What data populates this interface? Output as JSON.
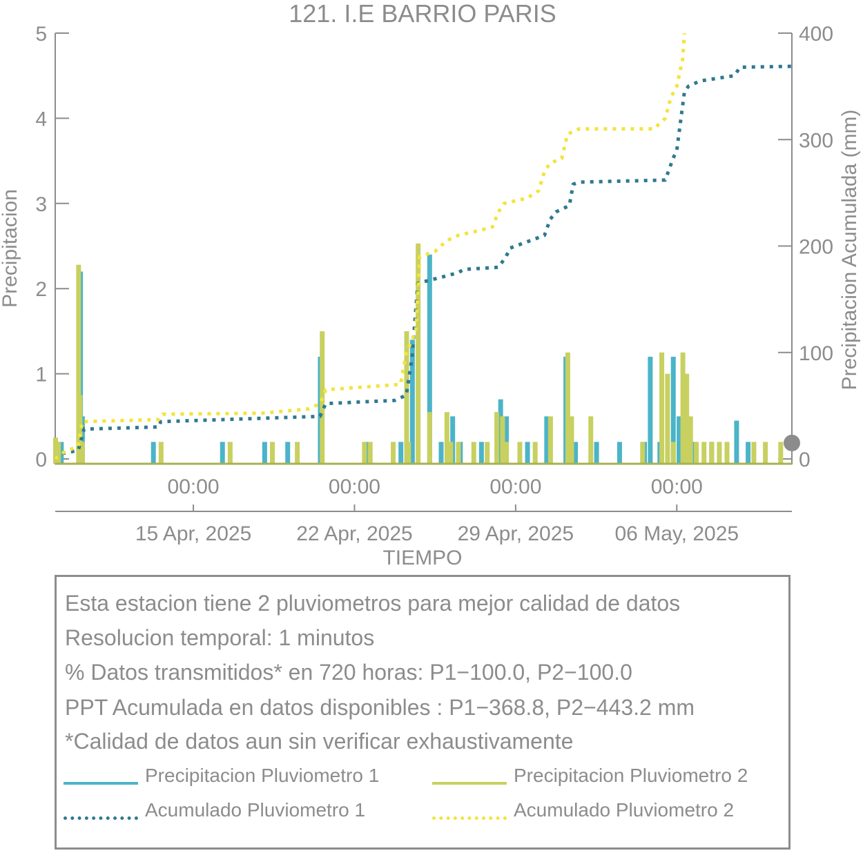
{
  "chart_data": {
    "type": "bar+line",
    "title": "121. I.E BARRIO PARIS",
    "xlabel": "TIEMPO",
    "ylabel": "Precipitacion",
    "y2label": "Precipitacion Acumulada (mm)",
    "x_range": [
      "2025-04-09T00:00",
      "2025-05-11T00:00"
    ],
    "ylim": [
      0,
      5
    ],
    "y2lim": [
      0,
      400
    ],
    "yticks": [
      0,
      1,
      2,
      3,
      4,
      5
    ],
    "y2ticks": [
      0,
      100,
      200,
      300,
      400
    ],
    "xticks": [
      {
        "date": "2025-04-15T00:00",
        "time": "00:00",
        "day": "15 Apr, 2025"
      },
      {
        "date": "2025-04-22T00:00",
        "time": "00:00",
        "day": "22 Apr, 2025"
      },
      {
        "date": "2025-04-29T00:00",
        "time": "00:00",
        "day": "29 Apr, 2025"
      },
      {
        "date": "2025-05-06T00:00",
        "time": "00:00",
        "day": "06 May, 2025"
      }
    ],
    "marker": {
      "date": "2025-05-11T00:00",
      "y2": 15
    },
    "series": [
      {
        "name": "Precipitacion Pluviometro 1",
        "kind": "bars",
        "axis": "left",
        "color": "#4bb4c8",
        "points": [
          [
            "2025-04-09T00:30",
            0.2
          ],
          [
            "2025-04-09T06:00",
            0.2
          ],
          [
            "2025-04-10T02:00",
            2.2
          ],
          [
            "2025-04-10T04:00",
            0.5
          ],
          [
            "2025-04-13T06:00",
            0.2
          ],
          [
            "2025-04-16T06:00",
            0.2
          ],
          [
            "2025-04-18T02:00",
            0.2
          ],
          [
            "2025-04-19T02:00",
            0.2
          ],
          [
            "2025-04-20T12:00",
            1.2
          ],
          [
            "2025-04-22T12:00",
            0.2
          ],
          [
            "2025-04-24T00:00",
            0.2
          ],
          [
            "2025-04-24T12:00",
            1.4
          ],
          [
            "2025-04-25T06:00",
            2.4
          ],
          [
            "2025-04-25T18:00",
            0.2
          ],
          [
            "2025-04-26T06:00",
            0.5
          ],
          [
            "2025-04-26T14:00",
            0.2
          ],
          [
            "2025-04-27T12:00",
            0.2
          ],
          [
            "2025-04-28T08:00",
            0.7
          ],
          [
            "2025-04-28T14:00",
            0.5
          ],
          [
            "2025-04-29T12:00",
            0.2
          ],
          [
            "2025-04-30T08:00",
            0.5
          ],
          [
            "2025-05-01T04:00",
            1.2
          ],
          [
            "2025-05-01T14:00",
            0.2
          ],
          [
            "2025-05-02T12:00",
            0.2
          ],
          [
            "2025-05-03T12:00",
            0.2
          ],
          [
            "2025-05-04T14:00",
            0.2
          ],
          [
            "2025-05-04T20:00",
            1.2
          ],
          [
            "2025-05-05T06:00",
            0.2
          ],
          [
            "2025-05-05T20:00",
            1.2
          ],
          [
            "2025-05-06T02:00",
            0.5
          ],
          [
            "2025-05-06T18:00",
            0.2
          ],
          [
            "2025-05-07T12:00",
            0.2
          ],
          [
            "2025-05-08T14:00",
            0.45
          ],
          [
            "2025-05-09T02:00",
            0.2
          ]
        ]
      },
      {
        "name": "Precipitacion Pluviometro 2",
        "kind": "bars",
        "axis": "left",
        "color": "#c8d060",
        "points": [
          [
            "2025-04-09T00:00",
            0.25
          ],
          [
            "2025-04-09T03:00",
            0.2
          ],
          [
            "2025-04-10T00:00",
            2.28
          ],
          [
            "2025-04-10T01:30",
            0.75
          ],
          [
            "2025-04-10T04:00",
            0.2
          ],
          [
            "2025-04-13T14:00",
            0.2
          ],
          [
            "2025-04-16T14:00",
            0.2
          ],
          [
            "2025-04-18T10:00",
            0.2
          ],
          [
            "2025-04-19T12:00",
            0.2
          ],
          [
            "2025-04-20T14:00",
            1.5
          ],
          [
            "2025-04-22T10:00",
            0.2
          ],
          [
            "2025-04-22T16:00",
            0.2
          ],
          [
            "2025-04-23T16:00",
            0.2
          ],
          [
            "2025-04-24T06:00",
            1.5
          ],
          [
            "2025-04-24T08:00",
            0.2
          ],
          [
            "2025-04-24T18:00",
            2.53
          ],
          [
            "2025-04-25T06:00",
            0.55
          ],
          [
            "2025-04-26T00:00",
            0.55
          ],
          [
            "2025-04-26T04:00",
            0.2
          ],
          [
            "2025-04-26T12:00",
            0.2
          ],
          [
            "2025-04-27T04:00",
            0.2
          ],
          [
            "2025-04-27T18:00",
            0.2
          ],
          [
            "2025-04-28T04:00",
            0.55
          ],
          [
            "2025-04-28T10:00",
            0.5
          ],
          [
            "2025-04-28T14:00",
            0.2
          ],
          [
            "2025-04-29T04:00",
            0.2
          ],
          [
            "2025-04-29T20:00",
            0.2
          ],
          [
            "2025-04-30T12:00",
            0.5
          ],
          [
            "2025-05-01T06:00",
            1.25
          ],
          [
            "2025-05-01T10:00",
            0.5
          ],
          [
            "2025-05-02T06:00",
            0.5
          ],
          [
            "2025-05-04T12:00",
            0.2
          ],
          [
            "2025-05-05T08:00",
            1.25
          ],
          [
            "2025-05-05T14:00",
            1.0
          ],
          [
            "2025-05-05T20:00",
            0.2
          ],
          [
            "2025-05-06T06:00",
            1.25
          ],
          [
            "2025-05-06T10:00",
            1.0
          ],
          [
            "2025-05-06T14:00",
            0.5
          ],
          [
            "2025-05-06T20:00",
            0.2
          ],
          [
            "2025-05-07T04:00",
            0.2
          ],
          [
            "2025-05-07T12:00",
            0.2
          ],
          [
            "2025-05-07T20:00",
            0.2
          ],
          [
            "2025-05-08T04:00",
            0.2
          ],
          [
            "2025-05-09T08:00",
            0.2
          ],
          [
            "2025-05-09T20:00",
            0.2
          ],
          [
            "2025-05-10T12:00",
            0.2
          ]
        ]
      },
      {
        "name": "Acumulado Pluviometro 1",
        "kind": "dotted-line",
        "axis": "right",
        "color": "#2f7990",
        "points": [
          [
            "2025-04-09T00:00",
            0
          ],
          [
            "2025-04-09T06:00",
            5
          ],
          [
            "2025-04-10T00:00",
            8
          ],
          [
            "2025-04-10T06:00",
            28
          ],
          [
            "2025-04-13T12:00",
            30
          ],
          [
            "2025-04-13T14:00",
            35
          ],
          [
            "2025-04-20T12:00",
            40
          ],
          [
            "2025-04-20T18:00",
            52
          ],
          [
            "2025-04-23T18:00",
            55
          ],
          [
            "2025-04-24T06:00",
            60
          ],
          [
            "2025-04-24T12:00",
            95
          ],
          [
            "2025-04-24T18:00",
            165
          ],
          [
            "2025-04-26T00:00",
            172
          ],
          [
            "2025-04-26T12:00",
            175
          ],
          [
            "2025-04-26T18:00",
            178
          ],
          [
            "2025-04-28T06:00",
            180
          ],
          [
            "2025-04-28T14:00",
            190
          ],
          [
            "2025-04-28T18:00",
            198
          ],
          [
            "2025-04-29T06:00",
            202
          ],
          [
            "2025-04-30T06:00",
            210
          ],
          [
            "2025-04-30T12:00",
            225
          ],
          [
            "2025-04-30T18:00",
            232
          ],
          [
            "2025-05-01T08:00",
            238
          ],
          [
            "2025-05-01T12:00",
            258
          ],
          [
            "2025-05-01T18:00",
            260
          ],
          [
            "2025-05-05T12:00",
            262
          ],
          [
            "2025-05-05T16:00",
            272
          ],
          [
            "2025-05-05T20:00",
            282
          ],
          [
            "2025-05-06T00:00",
            290
          ],
          [
            "2025-05-06T08:00",
            345
          ],
          [
            "2025-05-06T12:00",
            350
          ],
          [
            "2025-05-07T00:00",
            355
          ],
          [
            "2025-05-08T12:00",
            360
          ],
          [
            "2025-05-08T18:00",
            368
          ],
          [
            "2025-05-11T00:00",
            368.8
          ]
        ]
      },
      {
        "name": "Acumulado Pluviometro 2",
        "kind": "dotted-line",
        "axis": "right",
        "color": "#f2e43c",
        "points": [
          [
            "2025-04-09T00:00",
            0
          ],
          [
            "2025-04-09T06:00",
            5
          ],
          [
            "2025-04-10T00:00",
            12
          ],
          [
            "2025-04-10T04:00",
            35
          ],
          [
            "2025-04-13T12:00",
            37
          ],
          [
            "2025-04-13T16:00",
            42
          ],
          [
            "2025-04-18T00:00",
            43
          ],
          [
            "2025-04-20T00:00",
            47
          ],
          [
            "2025-04-20T12:00",
            52
          ],
          [
            "2025-04-20T18:00",
            65
          ],
          [
            "2025-04-24T00:00",
            70
          ],
          [
            "2025-04-24T06:00",
            100
          ],
          [
            "2025-04-24T16:00",
            120
          ],
          [
            "2025-04-24T20:00",
            190
          ],
          [
            "2025-04-25T12:00",
            195
          ],
          [
            "2025-04-26T00:00",
            205
          ],
          [
            "2025-04-26T12:00",
            210
          ],
          [
            "2025-04-27T12:00",
            215
          ],
          [
            "2025-04-28T00:00",
            218
          ],
          [
            "2025-04-28T06:00",
            232
          ],
          [
            "2025-04-28T12:00",
            240
          ],
          [
            "2025-04-29T12:00",
            245
          ],
          [
            "2025-04-30T00:00",
            252
          ],
          [
            "2025-04-30T06:00",
            270
          ],
          [
            "2025-04-30T12:00",
            278
          ],
          [
            "2025-05-01T00:00",
            282
          ],
          [
            "2025-05-01T06:00",
            305
          ],
          [
            "2025-05-01T18:00",
            310
          ],
          [
            "2025-05-05T00:00",
            310
          ],
          [
            "2025-05-05T12:00",
            320
          ],
          [
            "2025-05-05T18:00",
            340
          ],
          [
            "2025-05-06T00:00",
            350
          ],
          [
            "2025-05-06T06:00",
            375
          ],
          [
            "2025-05-06T08:00",
            400
          ]
        ]
      }
    ]
  },
  "info": {
    "lines": [
      "Esta estacion tiene 2 pluviometros para mejor calidad de datos",
      "Resolucion temporal: 1 minutos",
      "% Datos transmitidos* en 720 horas: P1−100.0, P2−100.0",
      "PPT Acumulada en datos disponibles : P1−368.8, P2−443.2 mm",
      "*Calidad de datos aun sin verificar exhaustivamente"
    ]
  },
  "legend": {
    "items": [
      {
        "label": "Precipitacion Pluviometro 1",
        "style": "solid",
        "color": "#4bb4c8"
      },
      {
        "label": "Precipitacion Pluviometro 2",
        "style": "solid",
        "color": "#c8d060"
      },
      {
        "label": "Acumulado Pluviometro 1",
        "style": "dotted",
        "color": "#2f7990"
      },
      {
        "label": "Acumulado Pluviometro 2",
        "style": "dotted",
        "color": "#f2e43c"
      }
    ]
  }
}
